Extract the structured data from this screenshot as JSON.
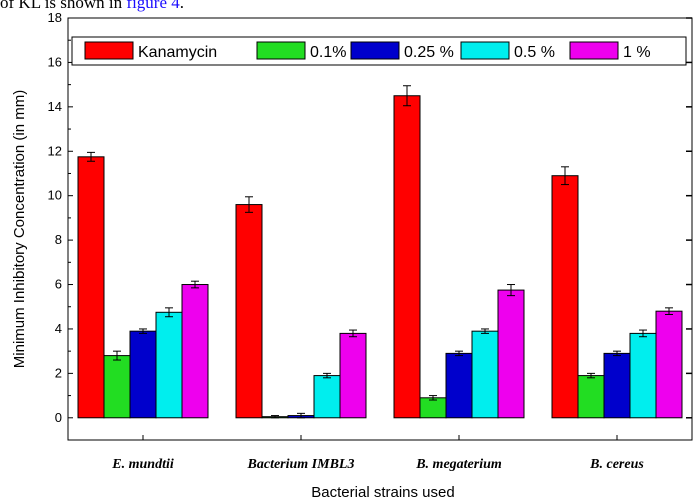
{
  "caption": {
    "prefix": "of KL is shown in ",
    "link": "figure 4",
    "suffix": "."
  },
  "chart_data": {
    "type": "bar",
    "categories": [
      "E. mundtii",
      "Bacterium IMBL3",
      "B. megaterium",
      "B. cereus"
    ],
    "series": [
      {
        "name": "Kanamycin",
        "color": "#ff0000",
        "values": [
          11.75,
          9.6,
          14.5,
          10.9
        ],
        "errors": [
          0.2,
          0.35,
          0.45,
          0.4
        ]
      },
      {
        "name": "0.1%",
        "color": "#22dd22",
        "values": [
          2.8,
          0.05,
          0.9,
          1.9
        ],
        "errors": [
          0.2,
          0.05,
          0.1,
          0.1
        ]
      },
      {
        "name": "0.25 %",
        "color": "#0000cc",
        "values": [
          3.9,
          0.1,
          2.9,
          2.9
        ],
        "errors": [
          0.1,
          0.1,
          0.1,
          0.1
        ]
      },
      {
        "name": "0.5 %",
        "color": "#00eeee",
        "values": [
          4.75,
          1.9,
          3.9,
          3.8
        ],
        "errors": [
          0.2,
          0.1,
          0.1,
          0.15
        ]
      },
      {
        "name": "1 %",
        "color": "#ee00ee",
        "values": [
          6.0,
          3.8,
          5.75,
          4.8
        ],
        "errors": [
          0.15,
          0.15,
          0.25,
          0.15
        ]
      }
    ],
    "xlabel": "Bacterial strains used",
    "ylabel": "Minimum Inhibitory Concentration (in mm)",
    "ylim": [
      -1,
      18
    ],
    "yticks": [
      0,
      2,
      4,
      6,
      8,
      10,
      12,
      14,
      16,
      18
    ],
    "legend_position": "top"
  }
}
